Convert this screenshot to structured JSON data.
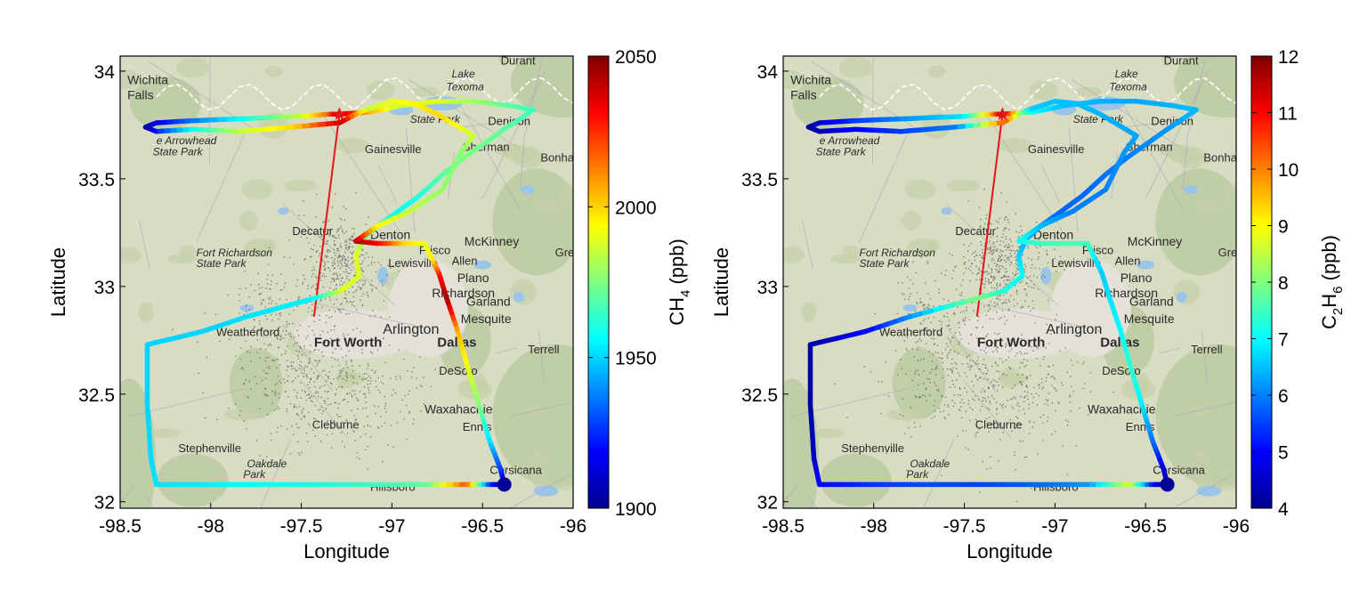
{
  "chart_data": [
    {
      "type": "scatter",
      "xlabel": "Longitude",
      "ylabel": "Latitude",
      "xlim": [
        -98.5,
        -96
      ],
      "ylim": [
        31.97,
        34.07
      ],
      "xticks": [
        "-98.5",
        "-98",
        "-97.5",
        "-97",
        "-96.5",
        "-96"
      ],
      "yticks": [
        "32",
        "32.5",
        "33",
        "33.5",
        "34"
      ],
      "colorbar": {
        "label_main": "CH",
        "label_sub": "4",
        "label_unit": " (ppb)",
        "ticks": [
          "1900",
          "1950",
          "2000",
          "2050"
        ],
        "range": [
          1900,
          2050
        ]
      },
      "colormap": "jet",
      "star": {
        "lon": -97.29,
        "lat": 33.8,
        "color": "#e8141a"
      },
      "red_line": [
        [
          -97.29,
          33.8
        ],
        [
          -97.43,
          32.86
        ]
      ],
      "track_lon": [
        -98.36,
        -98.3,
        -98.1,
        -97.8,
        -97.5,
        -97.35,
        -97.29,
        -97.12,
        -96.95,
        -96.75,
        -96.55,
        -96.35,
        -96.22,
        -96.38,
        -96.6,
        -96.72,
        -96.85,
        -96.98,
        -97.08,
        -97.16,
        -97.2,
        -97.18,
        -97.28,
        -97.45,
        -97.8,
        -98.05,
        -98.35,
        -98.35,
        -98.33,
        -98.3,
        -98.0,
        -97.7,
        -97.4,
        -97.1,
        -96.8,
        -96.58,
        -96.45,
        -96.38,
        -96.4,
        -96.46,
        -96.52,
        -96.58,
        -96.64,
        -96.7,
        -96.74,
        -96.78,
        -96.82,
        -96.95,
        -97.08,
        -97.2,
        -97.08,
        -96.9,
        -96.72,
        -96.62,
        -96.55,
        -96.75,
        -96.88,
        -97.0,
        -97.15,
        -97.29,
        -97.55,
        -97.85,
        -98.1,
        -98.3,
        -98.36
      ],
      "track_lat": [
        33.74,
        33.76,
        33.77,
        33.78,
        33.79,
        33.8,
        33.8,
        33.81,
        33.84,
        33.86,
        33.86,
        33.84,
        33.82,
        33.73,
        33.6,
        33.52,
        33.42,
        33.34,
        33.28,
        33.22,
        33.14,
        33.05,
        32.98,
        32.94,
        32.86,
        32.79,
        32.73,
        32.45,
        32.2,
        32.08,
        32.08,
        32.08,
        32.08,
        32.08,
        32.08,
        32.08,
        32.08,
        32.08,
        32.15,
        32.28,
        32.45,
        32.62,
        32.8,
        32.95,
        33.06,
        33.13,
        33.2,
        33.2,
        33.2,
        33.21,
        33.28,
        33.35,
        33.45,
        33.62,
        33.7,
        33.8,
        33.85,
        33.86,
        33.82,
        33.76,
        33.74,
        33.72,
        33.73,
        33.72,
        33.74
      ],
      "track_values": [
        1905,
        1915,
        1935,
        1960,
        1985,
        2015,
        2045,
        2005,
        1985,
        1990,
        1980,
        1970,
        1965,
        1970,
        1975,
        1970,
        1962,
        1958,
        1965,
        1975,
        1990,
        1988,
        1990,
        1955,
        1952,
        1950,
        1950,
        1950,
        1951,
        1952,
        1954,
        1958,
        1960,
        1965,
        1970,
        2020,
        1925,
        1903,
        1925,
        1950,
        1975,
        1990,
        2005,
        2045,
        2030,
        1998,
        1990,
        2000,
        2030,
        2045,
        1995,
        1985,
        1978,
        1975,
        1985,
        2000,
        1995,
        1992,
        1985,
        2040,
        2000,
        1985,
        1960,
        1925,
        1905
      ],
      "map_labels": [
        {
          "text": "Wichita",
          "lon": -98.46,
          "lat": 33.94,
          "size": "med"
        },
        {
          "text": "Falls",
          "lon": -98.46,
          "lat": 33.87,
          "size": "med"
        },
        {
          "text": "Durant",
          "lon": -96.4,
          "lat": 34.03,
          "size": "norm"
        },
        {
          "text": "Lake",
          "lon": -96.67,
          "lat": 33.97,
          "size": "it"
        },
        {
          "text": "Texoma",
          "lon": -96.7,
          "lat": 33.91,
          "size": "it"
        },
        {
          "text": "State Park",
          "lon": -96.9,
          "lat": 33.76,
          "size": "it"
        },
        {
          "text": "Denison",
          "lon": -96.47,
          "lat": 33.75,
          "size": "norm"
        },
        {
          "text": "Gainesville",
          "lon": -97.15,
          "lat": 33.62,
          "size": "norm"
        },
        {
          "text": "Sherman",
          "lon": -96.61,
          "lat": 33.63,
          "size": "norm"
        },
        {
          "text": "Bonham",
          "lon": -96.18,
          "lat": 33.58,
          "size": "norm"
        },
        {
          "text": "e Arrowhead",
          "lon": -98.3,
          "lat": 33.66,
          "size": "it"
        },
        {
          "text": "State Park",
          "lon": -98.32,
          "lat": 33.61,
          "size": "it"
        },
        {
          "text": "Decatur",
          "lon": -97.55,
          "lat": 33.24,
          "size": "norm"
        },
        {
          "text": "Denton",
          "lon": -97.12,
          "lat": 33.22,
          "size": "med"
        },
        {
          "text": "Frisco",
          "lon": -96.85,
          "lat": 33.15,
          "size": "norm"
        },
        {
          "text": "McKinney",
          "lon": -96.6,
          "lat": 33.19,
          "size": "med"
        },
        {
          "text": "Greenville",
          "lon": -96.1,
          "lat": 33.14,
          "size": "norm"
        },
        {
          "text": "Fort Richardson",
          "lon": -98.08,
          "lat": 33.14,
          "size": "it"
        },
        {
          "text": "State Park",
          "lon": -98.08,
          "lat": 33.09,
          "size": "it"
        },
        {
          "text": "Lewisville",
          "lon": -97.02,
          "lat": 33.09,
          "size": "norm"
        },
        {
          "text": "Allen",
          "lon": -96.67,
          "lat": 33.1,
          "size": "norm"
        },
        {
          "text": "Plano",
          "lon": -96.64,
          "lat": 33.02,
          "size": "med"
        },
        {
          "text": "Richardson",
          "lon": -96.78,
          "lat": 32.95,
          "size": "med"
        },
        {
          "text": "Garland",
          "lon": -96.59,
          "lat": 32.91,
          "size": "med"
        },
        {
          "text": "Mesquite",
          "lon": -96.62,
          "lat": 32.83,
          "size": "med"
        },
        {
          "text": "Weatherford",
          "lon": -97.97,
          "lat": 32.77,
          "size": "norm"
        },
        {
          "text": "Arlington",
          "lon": -97.05,
          "lat": 32.78,
          "size": "big2"
        },
        {
          "text": "Fort Worth",
          "lon": -97.43,
          "lat": 32.72,
          "size": "big"
        },
        {
          "text": "Dallas",
          "lon": -96.75,
          "lat": 32.72,
          "size": "big"
        },
        {
          "text": "Terrell",
          "lon": -96.25,
          "lat": 32.69,
          "size": "norm"
        },
        {
          "text": "DeSoto",
          "lon": -96.74,
          "lat": 32.59,
          "size": "norm"
        },
        {
          "text": "Waxahachie",
          "lon": -96.82,
          "lat": 32.41,
          "size": "med"
        },
        {
          "text": "Cleburne",
          "lon": -97.44,
          "lat": 32.34,
          "size": "norm"
        },
        {
          "text": "Ennis",
          "lon": -96.61,
          "lat": 32.33,
          "size": "norm"
        },
        {
          "text": "Stephenville",
          "lon": -98.18,
          "lat": 32.23,
          "size": "norm"
        },
        {
          "text": "Oakdale",
          "lon": -97.8,
          "lat": 32.16,
          "size": "it"
        },
        {
          "text": "Park",
          "lon": -97.82,
          "lat": 32.11,
          "size": "it"
        },
        {
          "text": "Corsicana",
          "lon": -96.46,
          "lat": 32.13,
          "size": "norm"
        },
        {
          "text": "Hillsboro",
          "lon": -97.12,
          "lat": 32.05,
          "size": "norm"
        }
      ]
    },
    {
      "type": "scatter",
      "xlabel": "Longitude",
      "ylabel": "Latitude",
      "xlim": [
        -98.5,
        -96
      ],
      "ylim": [
        31.97,
        34.07
      ],
      "xticks": [
        "-98.5",
        "-98",
        "-97.5",
        "-97",
        "-96.5",
        "-96"
      ],
      "yticks": [
        "32",
        "32.5",
        "33",
        "33.5",
        "34"
      ],
      "colorbar": {
        "label_main": "C",
        "label_sub": "2",
        "label_main2": "H",
        "label_sub2": "6",
        "label_unit": " (ppb)",
        "ticks": [
          "4",
          "5",
          "6",
          "7",
          "8",
          "9",
          "10",
          "11",
          "12"
        ],
        "range": [
          4,
          12
        ]
      },
      "colormap": "jet",
      "star": {
        "lon": -97.29,
        "lat": 33.8,
        "color": "#e8141a"
      },
      "red_line": [
        [
          -97.29,
          33.8
        ],
        [
          -97.43,
          32.86
        ]
      ],
      "track_lon": [
        -98.36,
        -98.3,
        -98.1,
        -97.8,
        -97.5,
        -97.35,
        -97.29,
        -97.12,
        -96.95,
        -96.75,
        -96.55,
        -96.35,
        -96.22,
        -96.38,
        -96.6,
        -96.72,
        -96.85,
        -96.98,
        -97.08,
        -97.16,
        -97.2,
        -97.18,
        -97.28,
        -97.45,
        -97.8,
        -98.05,
        -98.35,
        -98.35,
        -98.33,
        -98.3,
        -98.0,
        -97.7,
        -97.4,
        -97.1,
        -96.8,
        -96.58,
        -96.45,
        -96.38,
        -96.4,
        -96.46,
        -96.52,
        -96.58,
        -96.64,
        -96.7,
        -96.74,
        -96.78,
        -96.82,
        -96.95,
        -97.08,
        -97.2,
        -97.08,
        -96.9,
        -96.72,
        -96.62,
        -96.55,
        -96.75,
        -96.88,
        -97.0,
        -97.15,
        -97.29,
        -97.55,
        -97.85,
        -98.1,
        -98.3,
        -98.36
      ],
      "track_lat": [
        33.74,
        33.76,
        33.77,
        33.78,
        33.79,
        33.8,
        33.8,
        33.81,
        33.84,
        33.86,
        33.86,
        33.84,
        33.82,
        33.73,
        33.6,
        33.52,
        33.42,
        33.34,
        33.28,
        33.22,
        33.14,
        33.05,
        32.98,
        32.94,
        32.86,
        32.79,
        32.73,
        32.45,
        32.2,
        32.08,
        32.08,
        32.08,
        32.08,
        32.08,
        32.08,
        32.08,
        32.08,
        32.08,
        32.15,
        32.28,
        32.45,
        32.62,
        32.8,
        32.95,
        33.06,
        33.13,
        33.2,
        33.2,
        33.2,
        33.21,
        33.28,
        33.35,
        33.45,
        33.62,
        33.7,
        33.8,
        33.85,
        33.86,
        33.82,
        33.76,
        33.74,
        33.72,
        33.73,
        33.72,
        33.74
      ],
      "track_values": [
        4.2,
        4.6,
        5.4,
        6.2,
        6.8,
        9.5,
        11.5,
        7.0,
        6.5,
        6.4,
        6.3,
        6.4,
        6.5,
        6.2,
        6.0,
        5.9,
        5.8,
        5.8,
        6.0,
        6.3,
        6.6,
        7.0,
        7.2,
        8.0,
        6.2,
        5.0,
        4.3,
        4.3,
        4.5,
        5.0,
        5.4,
        5.6,
        5.5,
        5.8,
        6.2,
        8.8,
        5.0,
        4.2,
        4.6,
        5.8,
        6.8,
        7.4,
        7.0,
        6.8,
        6.6,
        6.8,
        7.5,
        7.6,
        7.5,
        7.2,
        6.5,
        6.0,
        6.0,
        6.2,
        6.3,
        6.4,
        6.5,
        6.5,
        6.6,
        10.5,
        6.0,
        5.5,
        5.0,
        4.4,
        4.2
      ],
      "map_labels": "same_as_left"
    }
  ]
}
